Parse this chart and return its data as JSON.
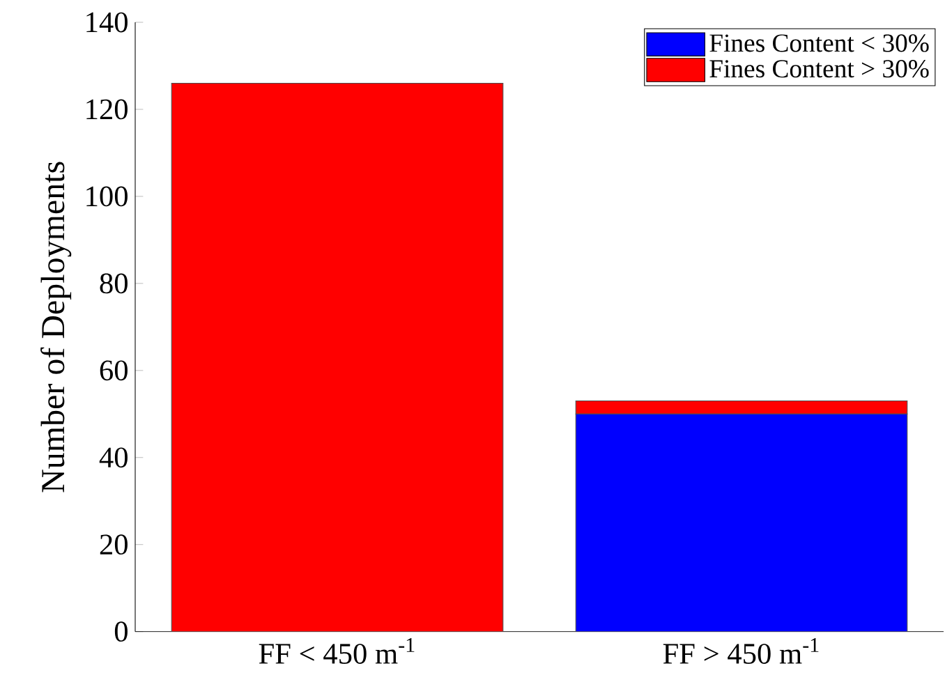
{
  "chart_data": {
    "type": "bar",
    "stacked": true,
    "ylabel": "Number of Deployments",
    "categories": [
      "FF < 450 m$^{-1}$",
      "FF > 450 m$^{-1}$"
    ],
    "series": [
      {
        "name": "Fines Content < 30%",
        "color": "#0000ff",
        "values": [
          0,
          50
        ]
      },
      {
        "name": "Fines Content > 30%",
        "color": "#ff0000",
        "values": [
          126,
          3
        ]
      }
    ],
    "ylim": [
      0,
      140
    ],
    "yticks": [
      0,
      20,
      40,
      60,
      80,
      100,
      120,
      140
    ],
    "legend": "top right",
    "grid": false
  }
}
